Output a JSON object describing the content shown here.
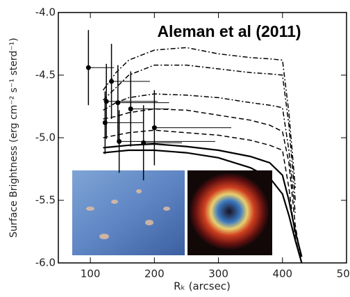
{
  "chart_data": {
    "type": "scatter",
    "annotation": "Aleman et al (2011)",
    "x_label": "Rₖ (arcsec)",
    "y_label": "Surface Brightness (erg cm⁻² s⁻¹ sterd⁻¹)",
    "xlim": [
      50,
      500
    ],
    "xticks": [
      100,
      200,
      300,
      400,
      500
    ],
    "ylim": [
      -6.0,
      -4.0
    ],
    "yticks": [
      {
        "value": -6.0,
        "label": "-6.0"
      },
      {
        "value": -5.5,
        "label": "-5.5"
      },
      {
        "value": -5.0,
        "label": "-5.0"
      },
      {
        "value": -4.5,
        "label": "-4.5"
      },
      {
        "value": -4.0,
        "label": "-4.0"
      }
    ],
    "points": {
      "color": "#000000",
      "x": [
        97,
        123,
        125,
        133,
        143,
        145,
        163,
        183,
        200
      ],
      "values": [
        -4.44,
        -4.88,
        -4.71,
        -4.55,
        -4.72,
        -5.03,
        -4.77,
        -5.04,
        -4.92
      ],
      "yerr": [
        0.3,
        0.25,
        0.3,
        0.3,
        0.3,
        0.25,
        0.3,
        0.3,
        0.3
      ],
      "xerr_right": [
        40,
        60,
        80,
        60,
        80,
        150,
        60,
        60,
        120
      ]
    },
    "x": [
      120,
      140,
      160,
      200,
      250,
      300,
      350,
      380,
      400,
      410,
      420,
      430,
      440
    ],
    "series": [
      {
        "color": "#000000",
        "dash": "dashdot",
        "values": [
          -4.62,
          -4.48,
          -4.38,
          -4.3,
          -4.28,
          -4.33,
          -4.36,
          -4.37,
          -4.38,
          -4.8,
          -5.4,
          null,
          null
        ]
      },
      {
        "color": "#000000",
        "dash": "dashdot",
        "values": [
          -4.7,
          -4.6,
          -4.5,
          -4.42,
          -4.42,
          -4.45,
          -4.48,
          -4.49,
          -4.5,
          -4.9,
          -5.5,
          null,
          null
        ]
      },
      {
        "color": "#000000",
        "dash": "dashdot",
        "values": [
          -4.78,
          -4.72,
          -4.68,
          -4.65,
          -4.66,
          -4.68,
          -4.72,
          -4.74,
          -4.76,
          -5.1,
          -5.6,
          null,
          null
        ]
      },
      {
        "color": "#000000",
        "dash": "dashed",
        "values": [
          -4.85,
          -4.83,
          -4.8,
          -4.77,
          -4.78,
          -4.82,
          -4.86,
          -4.9,
          -4.95,
          -5.2,
          -5.7,
          -6.0,
          null
        ]
      },
      {
        "color": "#000000",
        "dash": "dashed",
        "values": [
          -5.0,
          -4.98,
          -4.96,
          -4.94,
          -4.96,
          -4.98,
          -5.02,
          -5.06,
          -5.1,
          -5.4,
          -5.8,
          -6.0,
          null
        ]
      },
      {
        "color": "#000000",
        "dash": "solid",
        "values": [
          -5.08,
          -5.07,
          -5.06,
          -5.05,
          -5.07,
          -5.1,
          -5.15,
          -5.2,
          -5.3,
          -5.5,
          -5.75,
          -5.95,
          null
        ]
      },
      {
        "color": "#000000",
        "dash": "solid",
        "values": [
          -5.12,
          -5.11,
          -5.1,
          -5.1,
          -5.12,
          -5.16,
          -5.24,
          -5.32,
          -5.45,
          -5.62,
          -5.82,
          -6.0,
          null
        ]
      }
    ]
  }
}
